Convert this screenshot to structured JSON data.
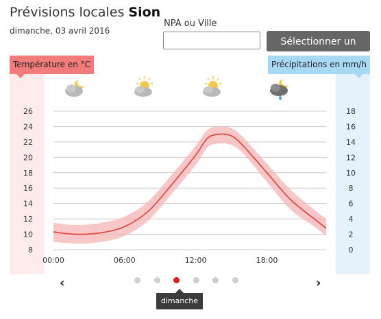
{
  "header": {
    "title_prefix": "Prévisions locales",
    "title_location": "Sion",
    "date": "dimanche, 03 avril 2016"
  },
  "search": {
    "label": "NPA ou Ville",
    "value": "",
    "placeholder": "",
    "button_label": "Sélectionner un lieu"
  },
  "axes_headers": {
    "temperature": "Température en °C",
    "precipitation": "Précipitations en mm/h"
  },
  "weather_icons": [
    "partly-cloudy-night-icon",
    "partly-cloudy-day-icon",
    "partly-cloudy-day-icon",
    "cloudy-night-rain-icon"
  ],
  "colors": {
    "temperature_line": "#e24a4a",
    "temperature_band": "#f5b5b5",
    "temperature_band_bg": "#fdeaea",
    "precipitation_band_bg": "#e5f2fb",
    "active_dot": "#d81e1e"
  },
  "chart_data": {
    "type": "line",
    "x": [
      0,
      2,
      4,
      6,
      8,
      10,
      12,
      13,
      14,
      15,
      16,
      18,
      20,
      22,
      23
    ],
    "x_tick_labels": [
      "00:00",
      "06:00",
      "12:00",
      "18:00"
    ],
    "x_ticks": [
      0,
      6,
      12,
      18
    ],
    "xlim": [
      0,
      23
    ],
    "series": [
      {
        "values": [
          10.3,
          10.0,
          10.2,
          11.0,
          13.0,
          16.5,
          20.3,
          22.5,
          23.0,
          22.8,
          21.5,
          18.0,
          14.5,
          12.0,
          10.8
        ],
        "lower": [
          9.0,
          8.8,
          9.0,
          9.8,
          11.8,
          15.3,
          19.0,
          21.3,
          21.8,
          21.6,
          20.5,
          16.8,
          13.2,
          11.0,
          9.8
        ],
        "upper": [
          11.5,
          11.2,
          11.5,
          12.3,
          14.3,
          17.8,
          21.5,
          23.6,
          24.0,
          23.8,
          22.6,
          19.2,
          15.8,
          13.2,
          12.0
        ]
      }
    ],
    "y_left_label": "Température en °C",
    "y_left_ticks": [
      8,
      10,
      12,
      14,
      16,
      18,
      20,
      22,
      24,
      26
    ],
    "y_left_lim": [
      8,
      26
    ],
    "y_right_label": "Précipitations en mm/h",
    "y_right_ticks": [
      0,
      2,
      4,
      6,
      8,
      10,
      12,
      14,
      16,
      18
    ],
    "y_right_lim": [
      0,
      18
    ],
    "grid": true
  },
  "day_nav": {
    "prev": "‹",
    "next": "›",
    "days": [
      "",
      "",
      "dimanche",
      "",
      "",
      ""
    ],
    "active_index": 2,
    "tooltip": "dimanche"
  }
}
